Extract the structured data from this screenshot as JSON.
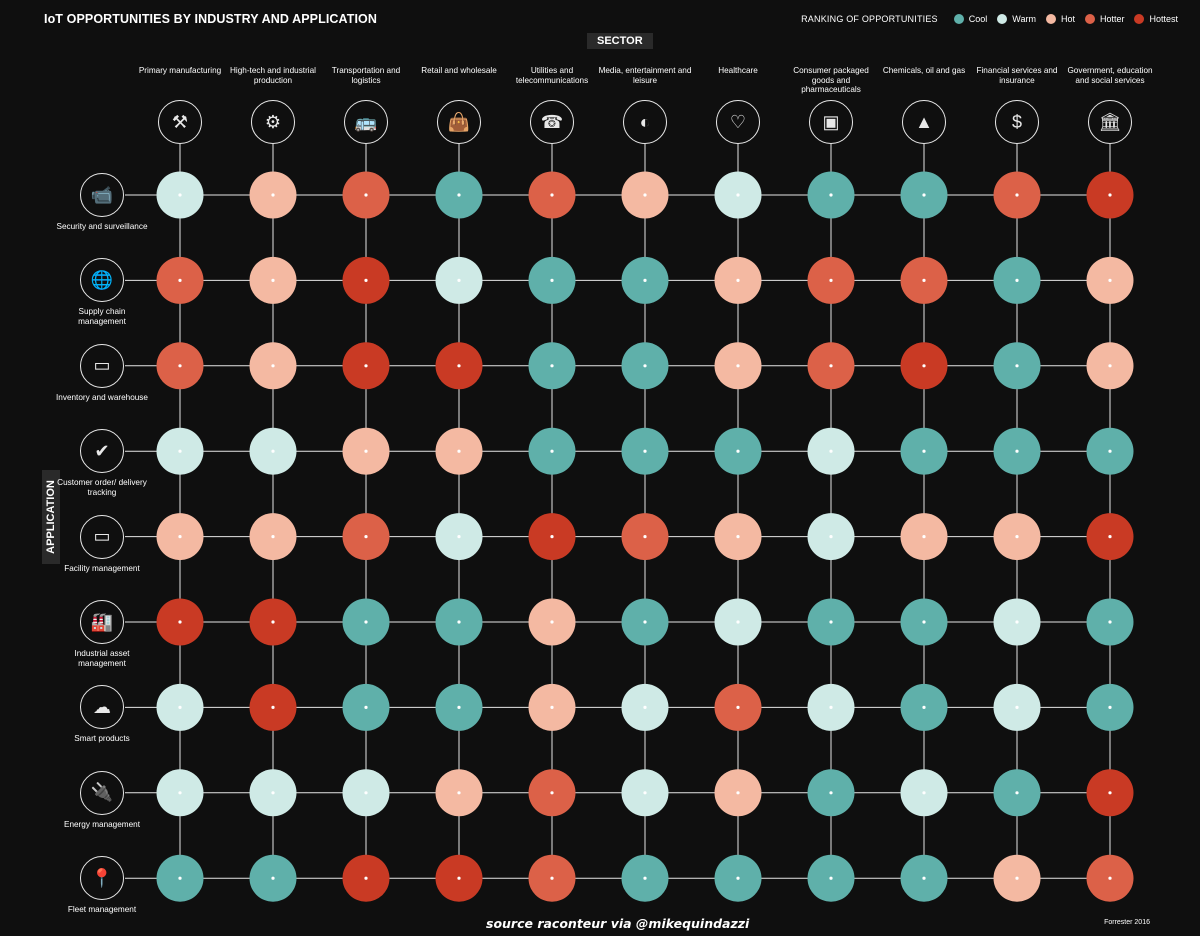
{
  "title": "IoT OPPORTUNITIES BY INDUSTRY AND APPLICATION",
  "legend": {
    "label": "RANKING OF OPPORTUNITIES",
    "items": [
      {
        "name": "Cool",
        "color": "#5fb0aa"
      },
      {
        "name": "Warm",
        "color": "#cfeae6"
      },
      {
        "name": "Hot",
        "color": "#f4b9a2"
      },
      {
        "name": "Hotter",
        "color": "#dc6148"
      },
      {
        "name": "Hottest",
        "color": "#c93a24"
      }
    ]
  },
  "sector_label": "SECTOR",
  "application_label": "APPLICATION",
  "sectors": [
    {
      "label": "Primary manufacturing",
      "icon": "tools-icon",
      "glyph": "⚒"
    },
    {
      "label": "High-tech and industrial production",
      "icon": "robot-arm-icon",
      "glyph": "⚙"
    },
    {
      "label": "Transportation and logistics",
      "icon": "bus-icon",
      "glyph": "🚌"
    },
    {
      "label": "Retail and wholesale",
      "icon": "shopping-bag-icon",
      "glyph": "👜"
    },
    {
      "label": "Utilities and telecommunications",
      "icon": "telephone-icon",
      "glyph": "☎"
    },
    {
      "label": "Media, entertainment and leisure",
      "icon": "vr-headset-icon",
      "glyph": "◐"
    },
    {
      "label": "Healthcare",
      "icon": "heart-icon",
      "glyph": "♡"
    },
    {
      "label": "Consumer packaged goods and pharmaceuticals",
      "icon": "box-icon",
      "glyph": "▣"
    },
    {
      "label": "Chemicals, oil and gas",
      "icon": "oil-rig-icon",
      "glyph": "▲"
    },
    {
      "label": "Financial services and insurance",
      "icon": "money-bag-icon",
      "glyph": "$"
    },
    {
      "label": "Government, education and social services",
      "icon": "government-building-icon",
      "glyph": "🏛"
    }
  ],
  "applications": [
    {
      "label": "Security and surveillance",
      "icon": "security-camera-icon",
      "glyph": "📹"
    },
    {
      "label": "Supply chain management",
      "icon": "globe-icon",
      "glyph": "🌐"
    },
    {
      "label": "Inventory and warehouse",
      "icon": "monitor-chart-icon",
      "glyph": "▭"
    },
    {
      "label": "Customer order/ delivery tracking",
      "icon": "checklist-icon",
      "glyph": "✔"
    },
    {
      "label": "Facility management",
      "icon": "monitor-factory-icon",
      "glyph": "▭"
    },
    {
      "label": "Industrial asset management",
      "icon": "factory-icon",
      "glyph": "🏭"
    },
    {
      "label": "Smart products",
      "icon": "cloud-icon",
      "glyph": "☁"
    },
    {
      "label": "Energy management",
      "icon": "plug-icon",
      "glyph": "🔌"
    },
    {
      "label": "Fleet management",
      "icon": "location-pin-icon",
      "glyph": "📍"
    }
  ],
  "chart_data": {
    "type": "heatmap",
    "title": "IoT OPPORTUNITIES BY INDUSTRY AND APPLICATION",
    "x_label": "SECTOR",
    "y_label": "APPLICATION",
    "scale": [
      "Cool",
      "Warm",
      "Hot",
      "Hotter",
      "Hottest"
    ],
    "x": [
      "Primary manufacturing",
      "High-tech and industrial production",
      "Transportation and logistics",
      "Retail and wholesale",
      "Utilities and telecommunications",
      "Media, entertainment and leisure",
      "Healthcare",
      "Consumer packaged goods and pharmaceuticals",
      "Chemicals, oil and gas",
      "Financial services and insurance",
      "Government, education and social services"
    ],
    "y": [
      "Security and surveillance",
      "Supply chain management",
      "Inventory and warehouse",
      "Customer order/ delivery tracking",
      "Facility management",
      "Industrial asset management",
      "Smart products",
      "Energy management",
      "Fleet management"
    ],
    "values": [
      [
        "Warm",
        "Hot",
        "Hotter",
        "Cool",
        "Hotter",
        "Hot",
        "Warm",
        "Cool",
        "Cool",
        "Hotter",
        "Hottest"
      ],
      [
        "Hotter",
        "Hot",
        "Hottest",
        "Warm",
        "Cool",
        "Cool",
        "Hot",
        "Hotter",
        "Hotter",
        "Cool",
        "Hot"
      ],
      [
        "Hotter",
        "Hot",
        "Hottest",
        "Hottest",
        "Cool",
        "Cool",
        "Hot",
        "Hotter",
        "Hottest",
        "Cool",
        "Hot"
      ],
      [
        "Warm",
        "Warm",
        "Hot",
        "Hot",
        "Cool",
        "Cool",
        "Cool",
        "Warm",
        "Cool",
        "Cool",
        "Cool"
      ],
      [
        "Hot",
        "Hot",
        "Hotter",
        "Warm",
        "Hottest",
        "Hotter",
        "Hot",
        "Warm",
        "Hot",
        "Hot",
        "Hottest"
      ],
      [
        "Hottest",
        "Hottest",
        "Cool",
        "Cool",
        "Hot",
        "Cool",
        "Warm",
        "Cool",
        "Cool",
        "Warm",
        "Cool"
      ],
      [
        "Warm",
        "Hottest",
        "Cool",
        "Cool",
        "Hot",
        "Warm",
        "Hotter",
        "Warm",
        "Cool",
        "Warm",
        "Cool"
      ],
      [
        "Warm",
        "Warm",
        "Warm",
        "Hot",
        "Hotter",
        "Warm",
        "Hot",
        "Cool",
        "Warm",
        "Cool",
        "Hottest"
      ],
      [
        "Cool",
        "Cool",
        "Hottest",
        "Hottest",
        "Hotter",
        "Cool",
        "Cool",
        "Cool",
        "Cool",
        "Hot",
        "Hotter"
      ]
    ]
  },
  "footer": "source raconteur via @mikequindazzi",
  "credit": "Forrester 2016"
}
